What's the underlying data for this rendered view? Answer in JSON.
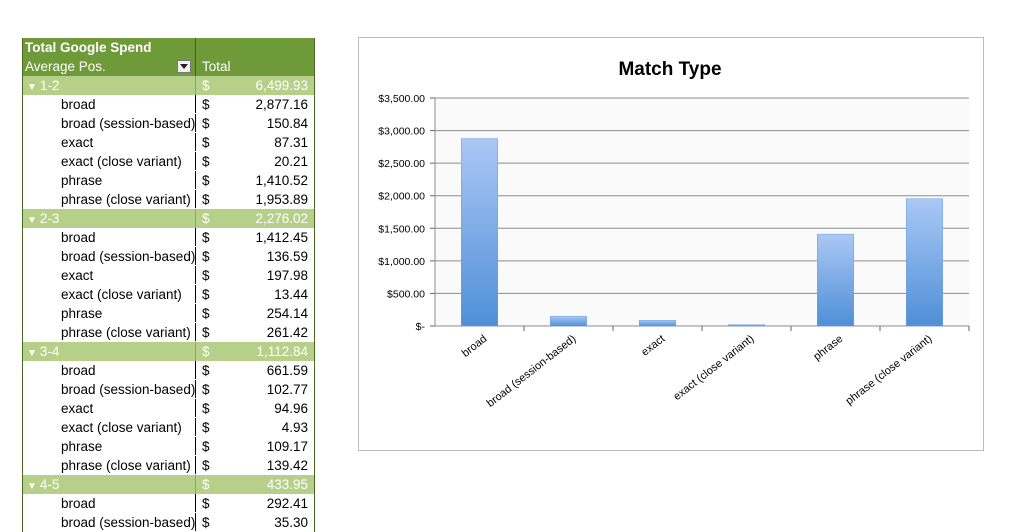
{
  "pivot": {
    "title": "Total Google Spend",
    "row_field": "Average Pos.",
    "value_header": "Total",
    "currency": "$",
    "groups": [
      {
        "label": "1-2",
        "total": "6,499.93",
        "items": [
          {
            "label": "broad",
            "value": "2,877.16"
          },
          {
            "label": "broad (session-based)",
            "value": "150.84"
          },
          {
            "label": "exact",
            "value": "87.31"
          },
          {
            "label": "exact (close variant)",
            "value": "20.21"
          },
          {
            "label": "phrase",
            "value": "1,410.52"
          },
          {
            "label": "phrase (close variant)",
            "value": "1,953.89"
          }
        ]
      },
      {
        "label": "2-3",
        "total": "2,276.02",
        "items": [
          {
            "label": "broad",
            "value": "1,412.45"
          },
          {
            "label": "broad (session-based)",
            "value": "136.59"
          },
          {
            "label": "exact",
            "value": "197.98"
          },
          {
            "label": "exact (close variant)",
            "value": "13.44"
          },
          {
            "label": "phrase",
            "value": "254.14"
          },
          {
            "label": "phrase (close variant)",
            "value": "261.42"
          }
        ]
      },
      {
        "label": "3-4",
        "total": "1,112.84",
        "items": [
          {
            "label": "broad",
            "value": "661.59"
          },
          {
            "label": "broad (session-based)",
            "value": "102.77"
          },
          {
            "label": "exact",
            "value": "94.96"
          },
          {
            "label": "exact (close variant)",
            "value": "4.93"
          },
          {
            "label": "phrase",
            "value": "109.17"
          },
          {
            "label": "phrase (close variant)",
            "value": "139.42"
          }
        ]
      },
      {
        "label": "4-5",
        "total": "433.95",
        "items": [
          {
            "label": "broad",
            "value": "292.41"
          },
          {
            "label": "broad (session-based)",
            "value": "35.30"
          }
        ]
      }
    ]
  },
  "chart_data": {
    "type": "bar",
    "title": "Match Type",
    "categories": [
      "broad",
      "broad (session-based)",
      "exact",
      "exact (close variant)",
      "phrase",
      "phrase (close variant)"
    ],
    "values": [
      2877.16,
      150.84,
      87.31,
      20.21,
      1410.52,
      1953.89
    ],
    "ylim": [
      0,
      3500
    ],
    "yticks": [
      0,
      500,
      1000,
      1500,
      2000,
      2500,
      3000,
      3500
    ],
    "ytick_labels": [
      "$-",
      "$500.00",
      "$1,000.00",
      "$1,500.00",
      "$2,000.00",
      "$2,500.00",
      "$3,000.00",
      "$3,500.00"
    ],
    "grid": true,
    "legend": "none",
    "colors": {
      "bar_top": "#aac8f4",
      "bar_bottom": "#4f8fd8",
      "grid": "#8c8c8c",
      "plot_bg": "#fafafa"
    }
  }
}
